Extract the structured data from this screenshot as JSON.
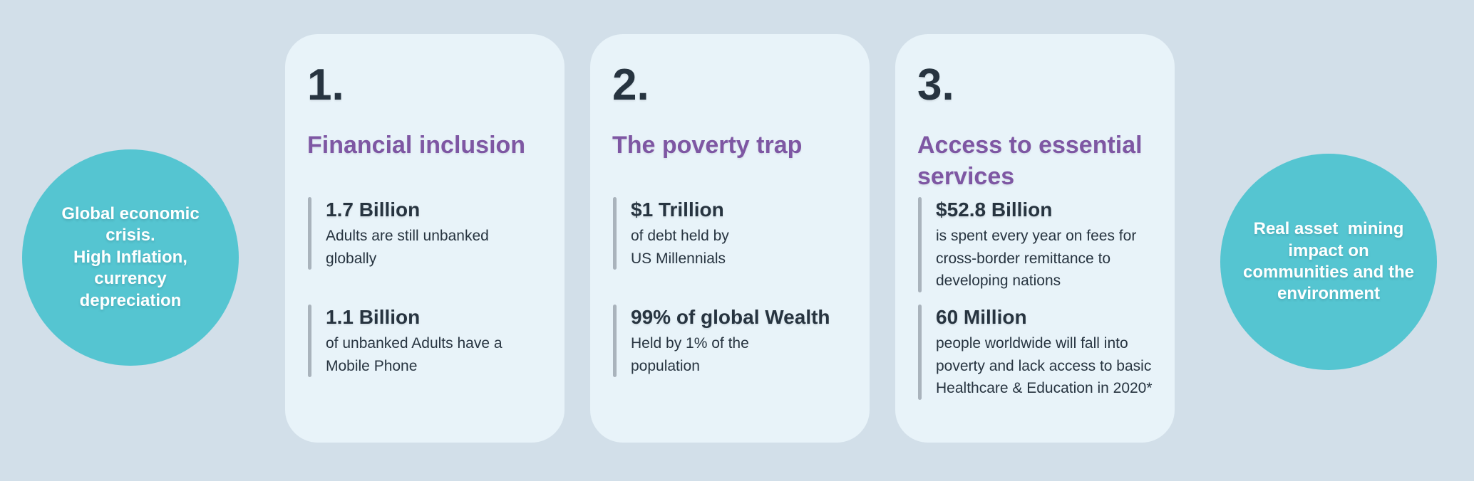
{
  "colors": {
    "background": "#d2dfe9",
    "card_bg": "#e8f3f9",
    "circle_teal": "#55c5d1",
    "heading_purple": "#7e57a3",
    "text_navy": "#273440",
    "bar_gray": "#a9b3bc",
    "circle_text": "#ffffff"
  },
  "left_circle": {
    "text": "Global economic\ncrisis.\nHigh Inflation,\ncurrency\ndepreciation"
  },
  "right_circle": {
    "text": "Real asset  mining\nimpact on\ncommunities and the\nenvironment"
  },
  "cards": [
    {
      "number": "1.",
      "title": "Financial inclusion",
      "stats": [
        {
          "value": "1.7 Billion",
          "description": "Adults are still unbanked\nglobally"
        },
        {
          "value": "1.1 Billion",
          "description": "of unbanked Adults have a\nMobile Phone"
        }
      ]
    },
    {
      "number": "2.",
      "title": "The poverty trap",
      "stats": [
        {
          "value": "$1 Trillion",
          "description": "of debt held by\nUS Millennials"
        },
        {
          "value": "99% of global Wealth",
          "description": "Held by 1% of the\npopulation"
        }
      ]
    },
    {
      "number": "3.",
      "title": "Access to essential\nservices",
      "stats": [
        {
          "value": "$52.8 Billion",
          "description": "is spent every year on fees for\ncross-border remittance to\ndeveloping nations"
        },
        {
          "value": "60 Million",
          "description": "people worldwide will fall into\npoverty and lack access to basic\nHealthcare & Education in 2020*"
        }
      ]
    }
  ]
}
